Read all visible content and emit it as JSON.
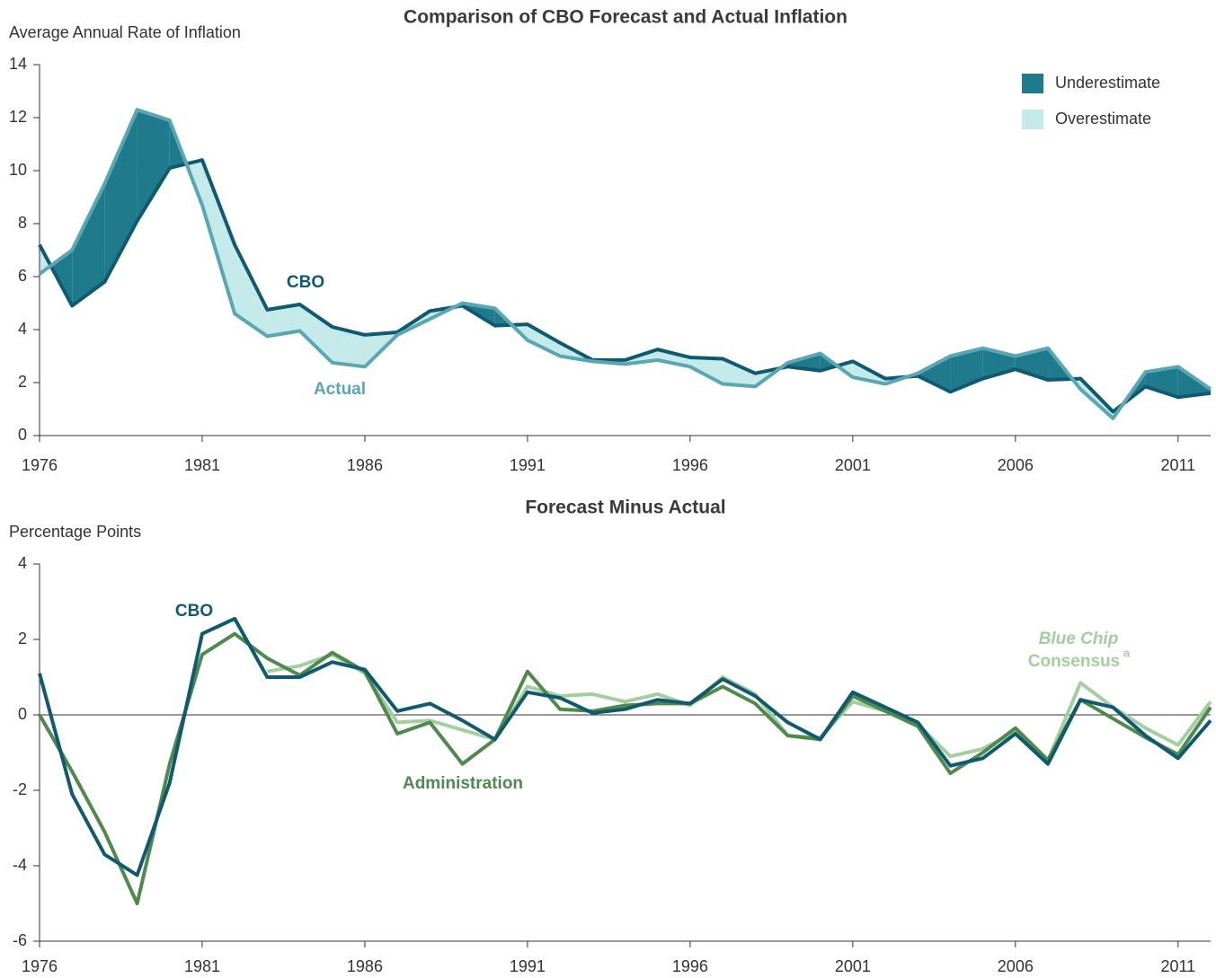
{
  "chart_data": [
    {
      "type": "band-line",
      "title": "Comparison of CBO Forecast and Actual Inflation",
      "y_label": "Average Annual Rate of Inflation",
      "x": [
        1976,
        1977,
        1978,
        1979,
        1980,
        1981,
        1982,
        1983,
        1984,
        1985,
        1986,
        1987,
        1988,
        1989,
        1990,
        1991,
        1992,
        1993,
        1994,
        1995,
        1996,
        1997,
        1998,
        1999,
        2000,
        2001,
        2002,
        2003,
        2004,
        2005,
        2006,
        2007,
        2008,
        2009,
        2010,
        2011,
        2012
      ],
      "series": [
        {
          "name": "CBO",
          "color": "#0f5a70",
          "values": [
            7.2,
            4.9,
            5.8,
            8.1,
            10.1,
            10.4,
            7.2,
            4.75,
            4.95,
            4.1,
            3.8,
            3.9,
            4.7,
            4.9,
            4.15,
            4.2,
            3.5,
            2.85,
            2.85,
            3.25,
            2.95,
            2.9,
            2.35,
            2.6,
            2.45,
            2.8,
            2.15,
            2.25,
            1.65,
            2.15,
            2.5,
            2.1,
            2.15,
            0.9,
            1.85,
            1.45,
            1.6
          ]
        },
        {
          "name": "Actual",
          "color": "#5aa7b4",
          "values": [
            6.1,
            7.0,
            9.5,
            12.3,
            11.9,
            8.7,
            4.6,
            3.75,
            3.95,
            2.75,
            2.6,
            3.8,
            4.4,
            5.0,
            4.8,
            3.6,
            3.0,
            2.8,
            2.7,
            2.85,
            2.6,
            1.95,
            1.85,
            2.75,
            3.1,
            2.2,
            1.95,
            2.35,
            3.0,
            3.3,
            3.0,
            3.3,
            1.75,
            0.65,
            2.4,
            2.6,
            1.75
          ]
        }
      ],
      "fills": [
        {
          "name": "Underestimate",
          "color": "#1f7a8c"
        },
        {
          "name": "Overestimate",
          "color": "#c5eaea"
        }
      ],
      "legend": "upper right",
      "xlim": [
        1976,
        2012
      ],
      "xticks": [
        1976,
        1981,
        1986,
        1991,
        1996,
        2001,
        2006,
        2011
      ],
      "ylim": [
        0,
        14
      ],
      "yticks": [
        0,
        2,
        4,
        6,
        8,
        10,
        12,
        14
      ],
      "grid": false,
      "zero_line": false
    },
    {
      "type": "line",
      "title": "Forecast Minus Actual",
      "y_label": "Percentage Points",
      "x": [
        1976,
        1977,
        1978,
        1979,
        1980,
        1981,
        1982,
        1983,
        1984,
        1985,
        1986,
        1987,
        1988,
        1989,
        1990,
        1991,
        1992,
        1993,
        1994,
        1995,
        1996,
        1997,
        1998,
        1999,
        2000,
        2001,
        2002,
        2003,
        2004,
        2005,
        2006,
        2007,
        2008,
        2009,
        2010,
        2011,
        2012
      ],
      "series": [
        {
          "name": "Blue Chip",
          "name_line2": "Consensus",
          "footnote": "a",
          "color": "#a3cf9e",
          "values": [
            null,
            null,
            null,
            null,
            null,
            null,
            null,
            1.15,
            1.3,
            1.6,
            1.1,
            -0.2,
            -0.15,
            -0.4,
            -0.65,
            0.75,
            0.5,
            0.55,
            0.35,
            0.55,
            0.25,
            1.0,
            0.55,
            -0.55,
            -0.6,
            0.35,
            0.1,
            -0.25,
            -1.1,
            -0.9,
            -0.45,
            -1.2,
            0.85,
            0.2,
            -0.35,
            -0.8,
            0.35
          ]
        },
        {
          "name": "Administration",
          "color": "#4f8a4d",
          "values": [
            0,
            -1.5,
            -3.1,
            -5.0,
            -1.3,
            1.6,
            2.15,
            1.5,
            1.05,
            1.65,
            1.15,
            -0.5,
            -0.2,
            -1.3,
            -0.65,
            1.15,
            0.15,
            0.1,
            0.25,
            0.3,
            0.3,
            0.75,
            0.3,
            -0.55,
            -0.65,
            0.5,
            0.1,
            -0.3,
            -1.55,
            -1.0,
            -0.35,
            -1.2,
            0.4,
            -0.1,
            -0.6,
            -1.05,
            0.2
          ]
        },
        {
          "name": "CBO",
          "color": "#0f5a70",
          "values": [
            1.1,
            -2.1,
            -3.7,
            -4.25,
            -1.8,
            2.15,
            2.55,
            1.0,
            1.0,
            1.4,
            1.2,
            0.1,
            0.3,
            -0.15,
            -0.65,
            0.6,
            0.45,
            0.05,
            0.15,
            0.4,
            0.3,
            0.95,
            0.5,
            -0.2,
            -0.65,
            0.6,
            0.2,
            -0.2,
            -1.35,
            -1.15,
            -0.5,
            -1.3,
            0.4,
            0.2,
            -0.55,
            -1.15,
            -0.15
          ]
        }
      ],
      "xlim": [
        1976,
        2012
      ],
      "xticks": [
        1976,
        1981,
        1986,
        1991,
        1996,
        2001,
        2006,
        2011
      ],
      "ylim": [
        -6,
        4
      ],
      "yticks": [
        -6,
        -4,
        -2,
        0,
        2,
        4
      ],
      "grid": false,
      "zero_line": true
    }
  ]
}
